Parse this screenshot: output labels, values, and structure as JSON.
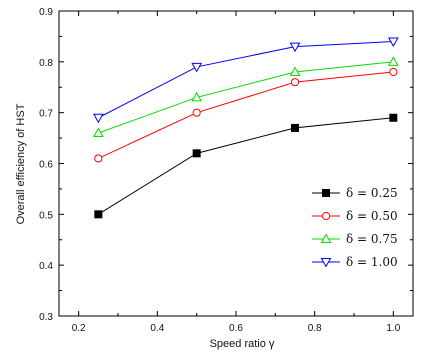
{
  "chart_data": {
    "type": "line",
    "xlabel": "Speed ratio γ",
    "ylabel": "Overall efficiency of HST",
    "xlim": [
      0.15,
      1.05
    ],
    "ylim": [
      0.3,
      0.9
    ],
    "x_ticks": [
      0.2,
      0.4,
      0.6,
      0.8,
      1.0
    ],
    "x_tick_labels": [
      "0.2",
      "0.4",
      "0.6",
      "0.8",
      "1.0"
    ],
    "y_ticks": [
      0.3,
      0.4,
      0.5,
      0.6,
      0.7,
      0.8,
      0.9
    ],
    "y_tick_labels": [
      "0.3",
      "0.4",
      "0.5",
      "0.6",
      "0.7",
      "0.8",
      "0.9"
    ],
    "grid": false,
    "legend_position": "lower-right",
    "x": [
      0.25,
      0.5,
      0.75,
      1.0
    ],
    "series": [
      {
        "name": "δ = 0.25",
        "values": [
          0.5,
          0.62,
          0.67,
          0.69
        ],
        "color": "#000000",
        "marker": "filled-square"
      },
      {
        "name": "δ = 0.50",
        "values": [
          0.61,
          0.7,
          0.76,
          0.78
        ],
        "color": "#ff0000",
        "marker": "open-circle"
      },
      {
        "name": "δ = 0.75",
        "values": [
          0.66,
          0.73,
          0.78,
          0.8
        ],
        "color": "#00dd00",
        "marker": "open-triangle-up"
      },
      {
        "name": "δ = 1.00",
        "values": [
          0.69,
          0.79,
          0.83,
          0.84
        ],
        "color": "#0000ff",
        "marker": "open-triangle-down"
      }
    ]
  }
}
